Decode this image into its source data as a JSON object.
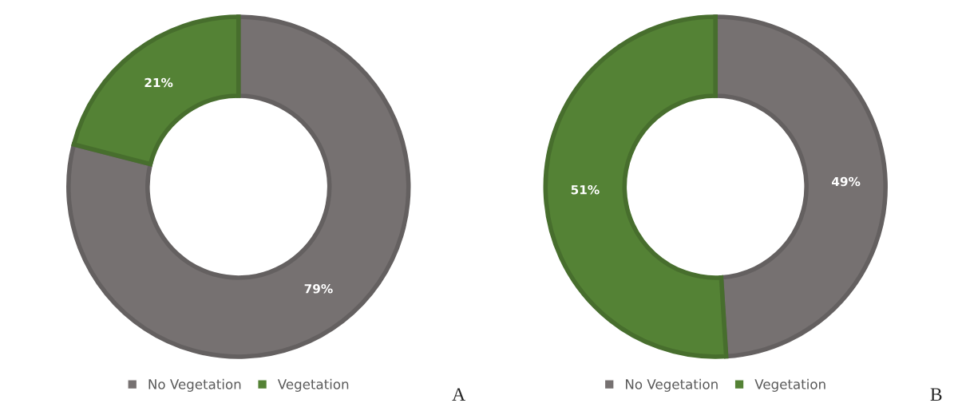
{
  "chart_data": [
    {
      "type": "donut",
      "categories": [
        "No Vegetation",
        "Vegetation"
      ],
      "values": [
        79,
        21
      ],
      "colors": [
        "#767171",
        "#548235"
      ],
      "value_labels": [
        "79%",
        "21%"
      ],
      "legend": "bottom",
      "annotations": [
        "A"
      ]
    },
    {
      "type": "donut",
      "categories": [
        "No Vegetation",
        "Vegetation"
      ],
      "values": [
        49,
        51
      ],
      "colors": [
        "#767171",
        "#548235"
      ],
      "value_labels": [
        "49%",
        "51%"
      ],
      "legend": "bottom",
      "annotations": [
        "B"
      ]
    }
  ]
}
